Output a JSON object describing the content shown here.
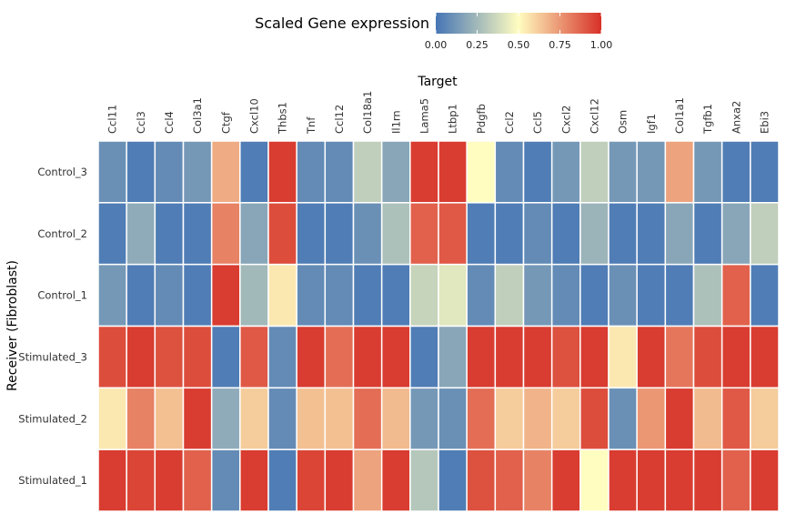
{
  "chart_data": {
    "type": "heatmap",
    "xlabel": "Target",
    "ylabel": "Receiver (Fibroblast)",
    "columns": [
      "Ccl11",
      "Ccl3",
      "Ccl4",
      "Col3a1",
      "Ctgf",
      "Cxcl10",
      "Thbs1",
      "Tnf",
      "Ccl12",
      "Col18a1",
      "Il1rn",
      "Lama5",
      "Ltbp1",
      "Pdgfb",
      "Ccl2",
      "Ccl5",
      "Cxcl2",
      "Cxcl12",
      "Osm",
      "Igf1",
      "Col1a1",
      "Tgfb1",
      "Anxa2",
      "Ebi3"
    ],
    "rows": [
      "Control_3",
      "Control_2",
      "Control_1",
      "Stimulated_3",
      "Stimulated_2",
      "Stimulated_1"
    ],
    "values": [
      [
        0.1,
        0.03,
        0.08,
        0.13,
        0.7,
        0.03,
        0.97,
        0.08,
        0.08,
        0.33,
        0.18,
        0.97,
        0.97,
        0.5,
        0.08,
        0.03,
        0.13,
        0.33,
        0.13,
        0.13,
        0.72,
        0.13,
        0.03,
        0.03
      ],
      [
        0.03,
        0.2,
        0.03,
        0.03,
        0.8,
        0.18,
        0.93,
        0.03,
        0.03,
        0.1,
        0.28,
        0.88,
        0.9,
        0.03,
        0.03,
        0.08,
        0.03,
        0.23,
        0.03,
        0.03,
        0.18,
        0.03,
        0.18,
        0.33
      ],
      [
        0.13,
        0.03,
        0.08,
        0.03,
        0.97,
        0.25,
        0.55,
        0.08,
        0.08,
        0.03,
        0.03,
        0.35,
        0.42,
        0.08,
        0.33,
        0.13,
        0.08,
        0.03,
        0.1,
        0.03,
        0.03,
        0.28,
        0.88,
        0.03
      ],
      [
        0.93,
        0.97,
        0.92,
        0.93,
        0.03,
        0.9,
        0.08,
        0.97,
        0.85,
        0.97,
        0.97,
        0.03,
        0.18,
        0.97,
        0.97,
        0.97,
        0.92,
        0.97,
        0.55,
        0.97,
        0.83,
        0.93,
        0.97,
        0.97
      ],
      [
        0.55,
        0.8,
        0.65,
        0.97,
        0.2,
        0.62,
        0.08,
        0.65,
        0.65,
        0.85,
        0.66,
        0.13,
        0.1,
        0.85,
        0.62,
        0.68,
        0.62,
        0.93,
        0.1,
        0.75,
        0.97,
        0.66,
        0.9,
        0.62
      ],
      [
        0.97,
        0.95,
        0.97,
        0.88,
        0.08,
        0.97,
        0.03,
        0.95,
        0.97,
        0.72,
        0.97,
        0.3,
        0.03,
        0.92,
        0.88,
        0.8,
        0.97,
        0.5,
        0.97,
        0.97,
        0.97,
        0.97,
        0.88,
        0.97
      ]
    ],
    "legend": {
      "title": "Scaled Gene expression",
      "placement": "top",
      "ticks": [
        "0.00",
        "0.25",
        "0.50",
        "0.75",
        "1.00"
      ],
      "range": [
        0,
        1
      ],
      "colors": [
        "#4575b4",
        "#fffdc0",
        "#d73027"
      ]
    },
    "grid": false
  }
}
